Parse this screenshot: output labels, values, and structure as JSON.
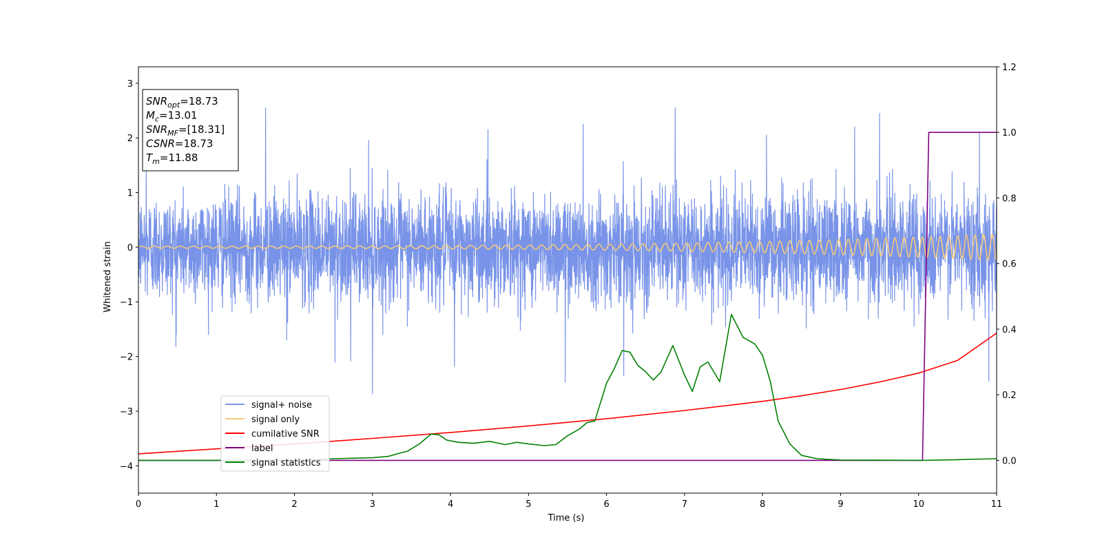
{
  "chart_data": {
    "type": "line",
    "xlabel": "Time (s)",
    "ylabel": "Whitened strain",
    "xlim": [
      0,
      11
    ],
    "ylim": [
      -4.5,
      3.3
    ],
    "y2lim": [
      -0.1,
      1.2
    ],
    "xticks": [
      0,
      1,
      2,
      3,
      4,
      5,
      6,
      7,
      8,
      9,
      10,
      11
    ],
    "yticks": [
      -4,
      -3,
      -2,
      -1,
      0,
      1,
      2,
      3
    ],
    "y2ticks": [
      0.0,
      0.2,
      0.4,
      0.6,
      0.8,
      1.0,
      1.2
    ],
    "grid": false,
    "legend_position": "lower-left",
    "annotation": {
      "lines": [
        {
          "var": "SNR",
          "sub": "opt",
          "value": "=18.73"
        },
        {
          "var": "M",
          "sub": "c",
          "value": "=13.01"
        },
        {
          "var": "SNR",
          "sub": "MF",
          "value": "=[18.31]"
        },
        {
          "var": "CSNR",
          "sub": "",
          "value": "=18.73"
        },
        {
          "var": "T",
          "sub": "m",
          "value": "=11.88"
        }
      ]
    },
    "series": [
      {
        "name": "signal+ noise",
        "color": "#7893e8",
        "axis": "left",
        "kind": "noise",
        "envelope": [
          0.95,
          1.0
        ],
        "peaks": [
          [
            0.1,
            1.55
          ],
          [
            0.48,
            -1.82
          ],
          [
            1.63,
            2.55
          ],
          [
            1.9,
            -1.7
          ],
          [
            2.52,
            -2.1
          ],
          [
            2.72,
            -2.08
          ],
          [
            2.95,
            1.95
          ],
          [
            3.0,
            -2.68
          ],
          [
            4.05,
            -2.18
          ],
          [
            4.48,
            2.15
          ],
          [
            5.47,
            -2.47
          ],
          [
            5.7,
            2.25
          ],
          [
            6.22,
            -2.35
          ],
          [
            6.88,
            2.55
          ],
          [
            8.05,
            2.05
          ],
          [
            9.18,
            2.2
          ],
          [
            9.5,
            2.45
          ],
          [
            10.78,
            2.1
          ],
          [
            10.9,
            -2.45
          ],
          [
            11.0,
            -1.6
          ]
        ]
      },
      {
        "name": "signal only",
        "color": "#f5c97c",
        "axis": "left",
        "kind": "chirp",
        "amplitude_start": 0.02,
        "amplitude_end": 0.24
      },
      {
        "name": "cumilative SNR",
        "color": "#ff0000",
        "axis": "right",
        "kind": "line",
        "x": [
          0,
          1,
          2,
          3,
          4,
          5,
          6,
          7,
          8,
          8.5,
          9,
          9.5,
          10,
          10.5,
          11
        ],
        "y": [
          0.02,
          0.035,
          0.05,
          0.067,
          0.085,
          0.105,
          0.127,
          0.152,
          0.18,
          0.197,
          0.216,
          0.239,
          0.266,
          0.305,
          0.388
        ]
      },
      {
        "name": "label",
        "color": "#800080",
        "axis": "right",
        "kind": "line",
        "x": [
          0,
          10.05,
          10.13,
          11
        ],
        "y": [
          0.0,
          0.0,
          1.0,
          1.0
        ]
      },
      {
        "name": "signal statistics",
        "color": "#008000",
        "axis": "right",
        "kind": "line",
        "x": [
          0,
          1,
          2,
          2.5,
          3,
          3.2,
          3.35,
          3.45,
          3.6,
          3.75,
          3.85,
          3.95,
          4.1,
          4.3,
          4.5,
          4.7,
          4.85,
          5.0,
          5.2,
          5.35,
          5.5,
          5.65,
          5.75,
          5.85,
          6.0,
          6.1,
          6.2,
          6.3,
          6.4,
          6.5,
          6.6,
          6.7,
          6.85,
          7.0,
          7.1,
          7.2,
          7.3,
          7.45,
          7.6,
          7.75,
          7.9,
          8.0,
          8.1,
          8.2,
          8.35,
          8.5,
          8.7,
          9.0,
          10.05,
          10.5,
          11
        ],
        "y": [
          0.0,
          0.0,
          0.0,
          0.005,
          0.008,
          0.012,
          0.022,
          0.028,
          0.05,
          0.08,
          0.078,
          0.062,
          0.055,
          0.052,
          0.058,
          0.048,
          0.055,
          0.05,
          0.045,
          0.048,
          0.075,
          0.095,
          0.115,
          0.12,
          0.235,
          0.28,
          0.335,
          0.33,
          0.29,
          0.27,
          0.245,
          0.27,
          0.35,
          0.26,
          0.21,
          0.285,
          0.3,
          0.24,
          0.445,
          0.375,
          0.355,
          0.32,
          0.24,
          0.12,
          0.05,
          0.015,
          0.005,
          0.001,
          0.0,
          0.002,
          0.005
        ]
      }
    ]
  }
}
